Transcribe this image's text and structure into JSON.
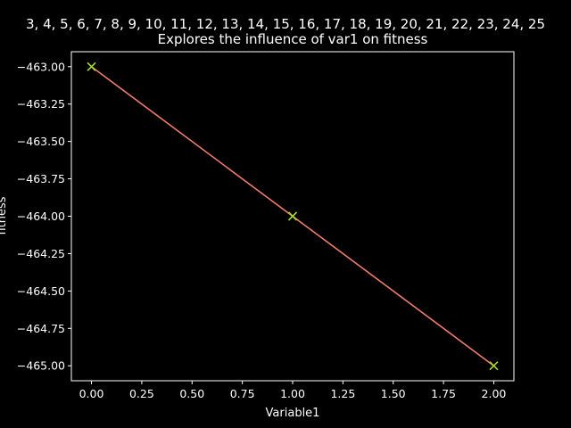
{
  "colors": {
    "background": "#000000",
    "foreground": "#ffffff",
    "line": "#f07b6e",
    "marker": "#a6d930"
  },
  "chart_data": {
    "type": "line",
    "title_line1": "3, 4, 5, 6, 7, 8, 9, 10, 11, 12, 13, 14, 15, 16, 17, 18, 19, 20, 21, 22, 23, 24, 25",
    "title_line2": "Explores the influence of var1 on fitness",
    "xlabel": "Variable1",
    "ylabel": "fitness",
    "x": [
      0,
      1,
      2
    ],
    "series": [
      {
        "values": [
          -463.0,
          -464.0,
          -465.0
        ],
        "marker": "x"
      }
    ],
    "xlim": [
      -0.1,
      2.1
    ],
    "ylim": [
      -465.1,
      -462.9
    ],
    "xticks": [
      0.0,
      0.25,
      0.5,
      0.75,
      1.0,
      1.25,
      1.5,
      1.75,
      2.0
    ],
    "xtick_labels": [
      "0.00",
      "0.25",
      "0.50",
      "0.75",
      "1.00",
      "1.25",
      "1.50",
      "1.75",
      "2.00"
    ],
    "yticks": [
      -463.0,
      -463.25,
      -463.5,
      -463.75,
      -464.0,
      -464.25,
      -464.5,
      -464.75,
      -465.0
    ],
    "ytick_labels": [
      "−463.00",
      "−463.25",
      "−463.50",
      "−463.75",
      "−464.00",
      "−464.25",
      "−464.50",
      "−464.75",
      "−465.00"
    ],
    "grid": false,
    "legend": "none"
  }
}
